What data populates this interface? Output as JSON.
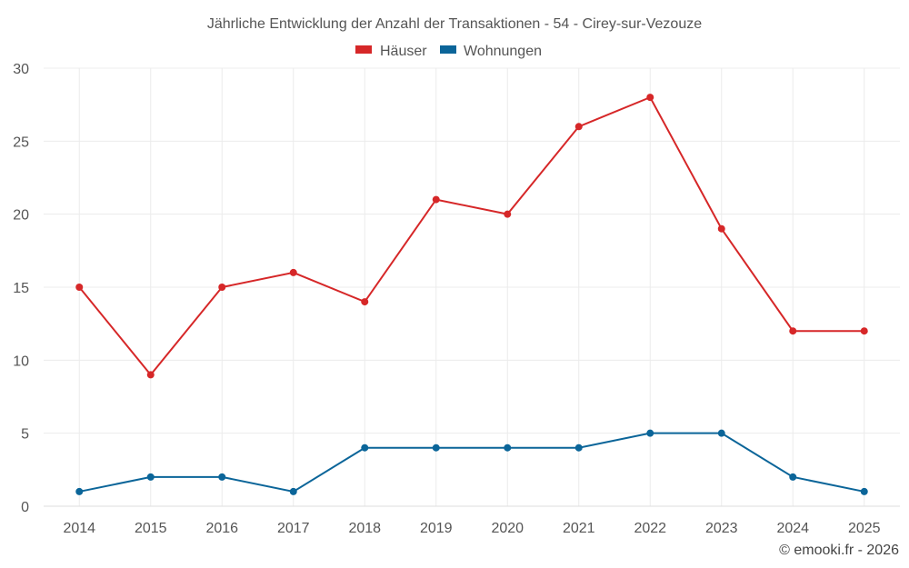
{
  "chart_data": {
    "type": "line",
    "title": "Jährliche Entwicklung der Anzahl der Transaktionen - 54 - Cirey-sur-Vezouze",
    "x": [
      "2014",
      "2015",
      "2016",
      "2017",
      "2018",
      "2019",
      "2020",
      "2021",
      "2022",
      "2023",
      "2024",
      "2025"
    ],
    "series": [
      {
        "name": "Häuser",
        "color": "#d62728",
        "values": [
          15,
          9,
          15,
          16,
          14,
          21,
          20,
          26,
          28,
          19,
          12,
          12
        ]
      },
      {
        "name": "Wohnungen",
        "color": "#0b6599",
        "values": [
          1,
          2,
          2,
          1,
          4,
          4,
          4,
          4,
          5,
          5,
          2,
          1
        ]
      }
    ],
    "ylim": [
      0,
      30
    ],
    "yticks": [
      0,
      5,
      10,
      15,
      20,
      25,
      30
    ],
    "grid": true,
    "legend": "top-center"
  },
  "credit": "© emooki.fr - 2026"
}
